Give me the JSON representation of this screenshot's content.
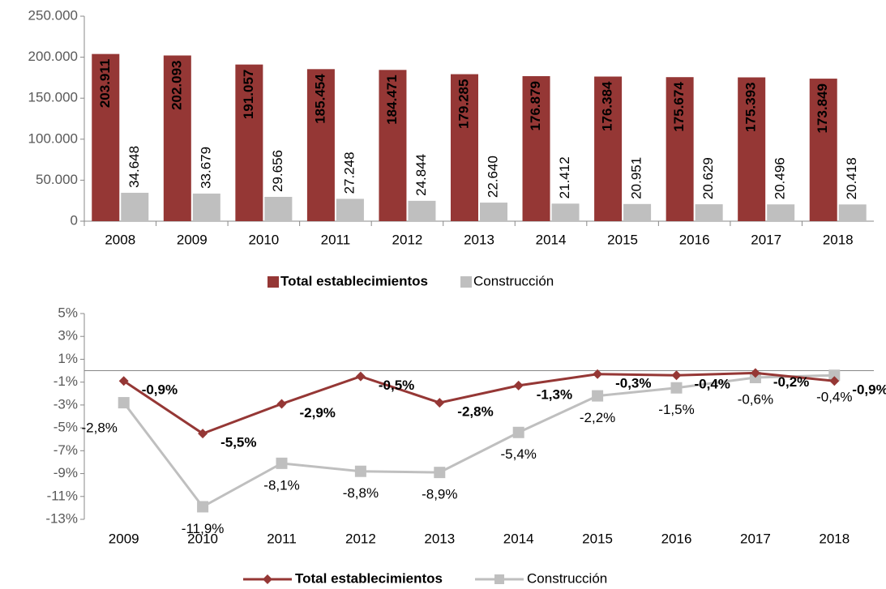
{
  "chart_data": [
    {
      "type": "bar",
      "categories": [
        "2008",
        "2009",
        "2010",
        "2011",
        "2012",
        "2013",
        "2014",
        "2015",
        "2016",
        "2017",
        "2018"
      ],
      "series": [
        {
          "name": "Total establecimientos",
          "color": "#953735",
          "values": [
            203911,
            202093,
            191057,
            185454,
            184471,
            179285,
            176879,
            176384,
            175674,
            175393,
            173849
          ],
          "value_labels": [
            "203.911",
            "202.093",
            "191.057",
            "185.454",
            "184.471",
            "179.285",
            "176.879",
            "176.384",
            "175.674",
            "175.393",
            "173.849"
          ]
        },
        {
          "name": "Construcción",
          "color": "#bfbfbf",
          "values": [
            34648,
            33679,
            29656,
            27248,
            24844,
            22640,
            21412,
            20951,
            20629,
            20496,
            20418
          ],
          "value_labels": [
            "34.648",
            "33.679",
            "29.656",
            "27.248",
            "24.844",
            "22.640",
            "21.412",
            "20.951",
            "20.629",
            "20.496",
            "20.418"
          ]
        }
      ],
      "ylim": [
        0,
        250000
      ],
      "yticks": [
        0,
        {
          "value": 50000,
          "label": "50.000"
        },
        {
          "value": 100000,
          "label": "100.000"
        },
        {
          "value": 150000,
          "label": "150.000"
        },
        {
          "value": 200000,
          "label": "200.000"
        },
        {
          "value": 250000,
          "label": "250.000"
        }
      ],
      "legend": "bottom"
    },
    {
      "type": "line",
      "categories": [
        "2009",
        "2010",
        "2011",
        "2012",
        "2013",
        "2014",
        "2015",
        "2016",
        "2017",
        "2018"
      ],
      "series": [
        {
          "name": "Total establecimientos",
          "color": "#953735",
          "values": [
            -0.9,
            -5.5,
            -2.9,
            -0.5,
            -2.8,
            -1.3,
            -0.3,
            -0.4,
            -0.2,
            -0.9
          ],
          "value_labels": [
            "-0,9%",
            "-5,5%",
            "-2,9%",
            "-0,5%",
            "-2,8%",
            "-1,3%",
            "-0,3%",
            "-0,4%",
            "-0,2%",
            "-0,9%"
          ]
        },
        {
          "name": "Construcción",
          "color": "#bfbfbf",
          "values": [
            -2.8,
            -11.9,
            -8.1,
            -8.8,
            -8.9,
            -5.4,
            -2.2,
            -1.5,
            -0.6,
            -0.4
          ],
          "value_labels": [
            "-2,8%",
            "-11,9%",
            "-8,1%",
            "-8,8%",
            "-8,9%",
            "-5,4%",
            "-2,2%",
            "-1,5%",
            "-0,6%",
            "-0,4%"
          ]
        }
      ],
      "ylim": [
        -13,
        5
      ],
      "yticks": [
        {
          "value": -13,
          "label": "-13%"
        },
        {
          "value": -11,
          "label": "-11%"
        },
        {
          "value": -9,
          "label": "-9%"
        },
        {
          "value": -7,
          "label": "-7%"
        },
        {
          "value": -5,
          "label": "-5%"
        },
        {
          "value": -3,
          "label": "-3%"
        },
        {
          "value": -1,
          "label": "-1%"
        },
        {
          "value": 1,
          "label": "1%"
        },
        {
          "value": 3,
          "label": "3%"
        },
        {
          "value": 5,
          "label": "5%"
        }
      ],
      "legend": "bottom"
    }
  ]
}
